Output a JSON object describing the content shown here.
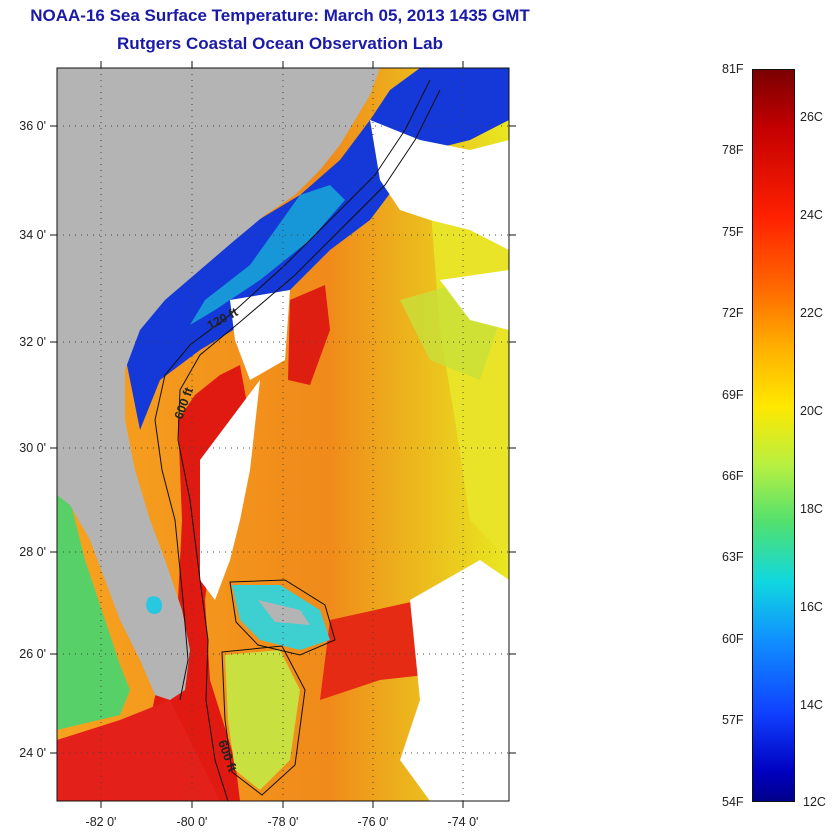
{
  "title": "NOAA-16 Sea Surface Temperature:  March 05, 2013 1435 GMT",
  "subtitle": "Rutgers Coastal Ocean Observation Lab",
  "map": {
    "lat_ticks": [
      "36 0'",
      "34 0'",
      "32 0'",
      "30 0'",
      "28 0'",
      "26 0'",
      "24 0'"
    ],
    "lon_ticks": [
      "-82 0'",
      "-80 0'",
      "-78 0'",
      "-76 0'",
      "-74 0'"
    ],
    "contour_labels": [
      "120 ft",
      "600 ft",
      "600 ft"
    ],
    "colors": {
      "land": "#b4b4b4",
      "cloud": "#ffffff",
      "warm": "#e01a10",
      "mid": "#f08a1a",
      "cool": "#1030d8"
    }
  },
  "colorbar": {
    "fahrenheit": [
      "81F",
      "78F",
      "75F",
      "72F",
      "69F",
      "66F",
      "63F",
      "60F",
      "57F",
      "54F"
    ],
    "celsius": [
      "26C",
      "24C",
      "22C",
      "20C",
      "18C",
      "16C",
      "14C",
      "12C"
    ]
  }
}
